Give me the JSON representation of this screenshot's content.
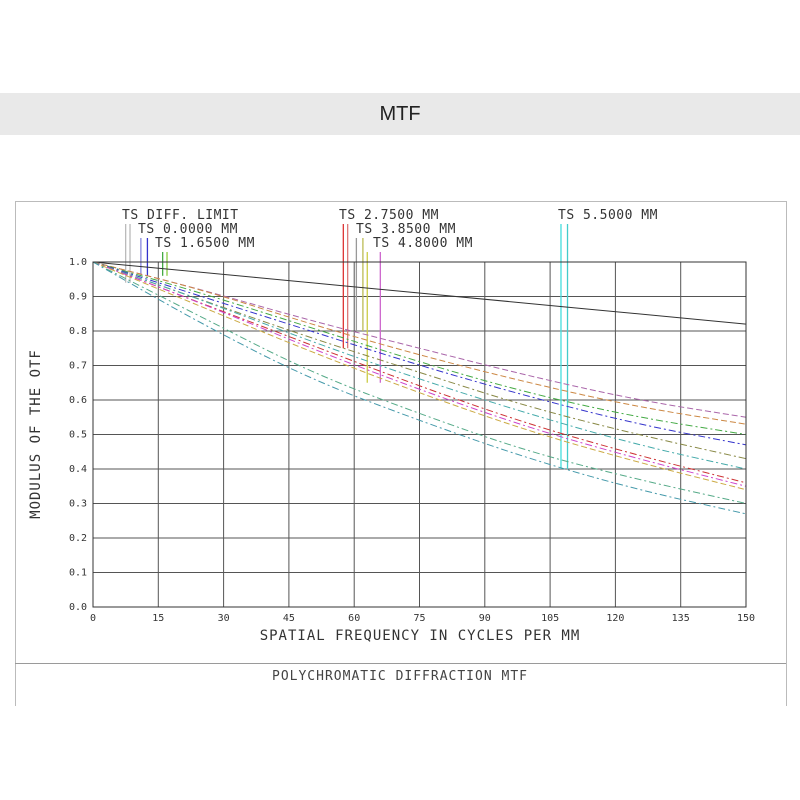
{
  "header": {
    "title": "MTF"
  },
  "chart_data": {
    "type": "line",
    "xlabel": "SPATIAL FREQUENCY IN CYCLES PER MM",
    "ylabel": "MODULUS OF THE OTF",
    "footer": "POLYCHROMATIC DIFFRACTION MTF",
    "xlim": [
      0,
      150
    ],
    "ylim": [
      0,
      1
    ],
    "xticks": [
      "0",
      "15",
      "30",
      "45",
      "60",
      "75",
      "90",
      "105",
      "120",
      "135",
      "150"
    ],
    "yticks": [
      "0.0",
      "0.1",
      "0.2",
      "0.3",
      "0.4",
      "0.5",
      "0.6",
      "0.7",
      "0.8",
      "0.9",
      "1.0"
    ],
    "grid": true,
    "legend": [
      {
        "label": "TS DIFF. LIMIT",
        "colors": [
          "#bbbbbb",
          "#bbbbbb"
        ],
        "x": [
          7.5,
          8.5
        ],
        "y_bottom": 0.94
      },
      {
        "label": "TS 0.0000 MM",
        "colors": [
          "#8888dd",
          "#3333cc"
        ],
        "x": [
          11.0,
          12.5
        ],
        "y_bottom": 0.96
      },
      {
        "label": "TS 1.6500 MM",
        "colors": [
          "#44aa44",
          "#88cc44"
        ],
        "x": [
          16.0,
          17.0
        ],
        "y_bottom": 0.96
      },
      {
        "label": "TS 2.7500 MM",
        "colors": [
          "#dd3333",
          "#dd7777"
        ],
        "x": [
          57.5,
          58.5
        ],
        "y_bottom": 0.75
      },
      {
        "label": "TS 3.8500 MM",
        "colors": [
          "#999999",
          "#bbbb55"
        ],
        "x": [
          60.5,
          62.0
        ],
        "y_bottom": 0.8
      },
      {
        "label": "TS 4.8000 MM",
        "colors": [
          "#cccc44",
          "#cc66cc"
        ],
        "x": [
          63.0,
          66.0
        ],
        "y_bottom": 0.65
      },
      {
        "label": "TS 5.5000 MM",
        "colors": [
          "#44dddd",
          "#44cccc"
        ],
        "x": [
          107.5,
          109.0
        ],
        "y_bottom": 0.4
      }
    ],
    "series": [
      {
        "color": "#333333",
        "dash": "",
        "x": [
          0,
          75,
          150
        ],
        "y": [
          1.0,
          0.91,
          0.82
        ]
      },
      {
        "color": "#aa66aa",
        "dash": "6,3",
        "x": [
          0,
          25,
          50,
          75,
          100,
          125,
          150
        ],
        "y": [
          1.0,
          0.92,
          0.83,
          0.75,
          0.67,
          0.6,
          0.55
        ]
      },
      {
        "color": "#cc8844",
        "dash": "6,3",
        "x": [
          0,
          25,
          50,
          75,
          100,
          125,
          150
        ],
        "y": [
          1.0,
          0.92,
          0.82,
          0.73,
          0.65,
          0.58,
          0.53
        ]
      },
      {
        "color": "#44aa44",
        "dash": "7,3,2,3",
        "x": [
          0,
          25,
          50,
          75,
          100,
          125,
          150
        ],
        "y": [
          1.0,
          0.91,
          0.81,
          0.71,
          0.62,
          0.55,
          0.5
        ]
      },
      {
        "color": "#3333cc",
        "dash": "7,3,2,3",
        "x": [
          0,
          25,
          50,
          75,
          100,
          125,
          150
        ],
        "y": [
          1.0,
          0.9,
          0.8,
          0.7,
          0.61,
          0.53,
          0.47
        ]
      },
      {
        "color": "#888844",
        "dash": "7,3,2,3",
        "x": [
          0,
          25,
          50,
          75,
          100,
          125,
          150
        ],
        "y": [
          1.0,
          0.89,
          0.78,
          0.68,
          0.58,
          0.5,
          0.43
        ]
      },
      {
        "color": "#44aaaa",
        "dash": "7,3,2,3",
        "x": [
          0,
          25,
          50,
          75,
          100,
          125,
          150
        ],
        "y": [
          1.0,
          0.89,
          0.77,
          0.66,
          0.56,
          0.47,
          0.4
        ]
      },
      {
        "color": "#cc3333",
        "dash": "7,3,2,3",
        "x": [
          0,
          25,
          50,
          75,
          100,
          125,
          150
        ],
        "y": [
          1.0,
          0.88,
          0.76,
          0.64,
          0.53,
          0.44,
          0.36
        ]
      },
      {
        "color": "#cc44cc",
        "dash": "7,3,2,3",
        "x": [
          0,
          25,
          50,
          75,
          100,
          125,
          150
        ],
        "y": [
          1.0,
          0.88,
          0.75,
          0.63,
          0.52,
          0.43,
          0.35
        ]
      },
      {
        "color": "#ccaa44",
        "dash": "6,3",
        "x": [
          0,
          25,
          50,
          75,
          100,
          125,
          150
        ],
        "y": [
          1.0,
          0.87,
          0.74,
          0.62,
          0.51,
          0.42,
          0.34
        ]
      },
      {
        "color": "#55aa88",
        "dash": "7,3,2,3",
        "x": [
          0,
          25,
          50,
          75,
          100,
          125,
          150
        ],
        "y": [
          1.0,
          0.84,
          0.68,
          0.56,
          0.45,
          0.37,
          0.3
        ]
      },
      {
        "color": "#4499aa",
        "dash": "7,3,2,3",
        "x": [
          0,
          25,
          50,
          75,
          100,
          125,
          150
        ],
        "y": [
          1.0,
          0.82,
          0.66,
          0.54,
          0.43,
          0.34,
          0.27
        ]
      }
    ]
  }
}
